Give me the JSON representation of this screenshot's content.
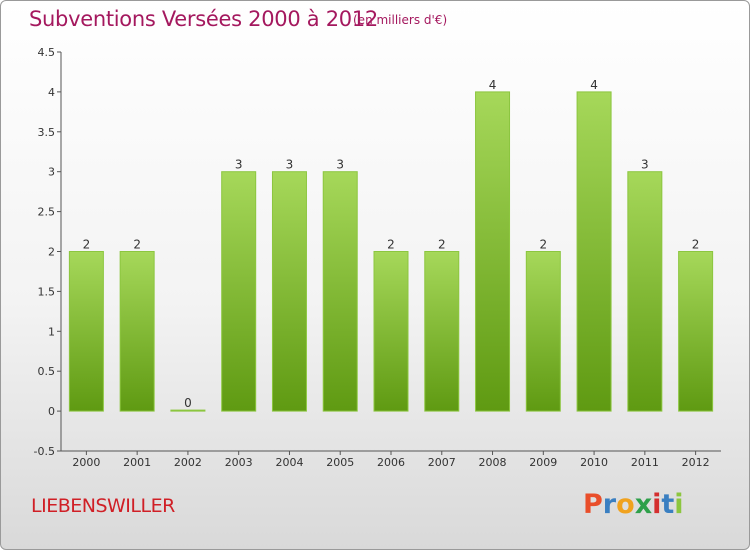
{
  "header": {
    "title": "Subventions Versées 2000 à 2012",
    "unit_note": "(en milliers d'€)"
  },
  "commune": "LIEBENSWILLER",
  "logo": {
    "letters": [
      "P",
      "r",
      "o",
      "x",
      "i",
      "t",
      "i"
    ],
    "colors": [
      "#e94e2a",
      "#3a7fc1",
      "#f0a21e",
      "#2ea04a",
      "#d42f2f",
      "#3a7fc1",
      "#8cc63f"
    ]
  },
  "chart_data": {
    "type": "bar",
    "categories": [
      "2000",
      "2001",
      "2002",
      "2003",
      "2004",
      "2005",
      "2006",
      "2007",
      "2008",
      "2009",
      "2010",
      "2011",
      "2012"
    ],
    "values": [
      2,
      2,
      0,
      3,
      3,
      3,
      2,
      2,
      4,
      2,
      4,
      3,
      2
    ],
    "data_labels": [
      "2",
      "2",
      "0",
      "3",
      "3",
      "3",
      "2",
      "2",
      "4",
      "2",
      "4",
      "3",
      "2"
    ],
    "title": "Subventions Versées 2000 à 2012",
    "xlabel": "",
    "ylabel": "",
    "ylim": [
      -0.5,
      4.5
    ],
    "y_ticks": [
      "-0.5",
      "0",
      "0.5",
      "1",
      "1.5",
      "2",
      "2.5",
      "3",
      "3.5",
      "4",
      "4.5"
    ],
    "grid": false,
    "bar_color_top": "#a6d85a",
    "bar_color_bottom": "#5f9a12"
  }
}
